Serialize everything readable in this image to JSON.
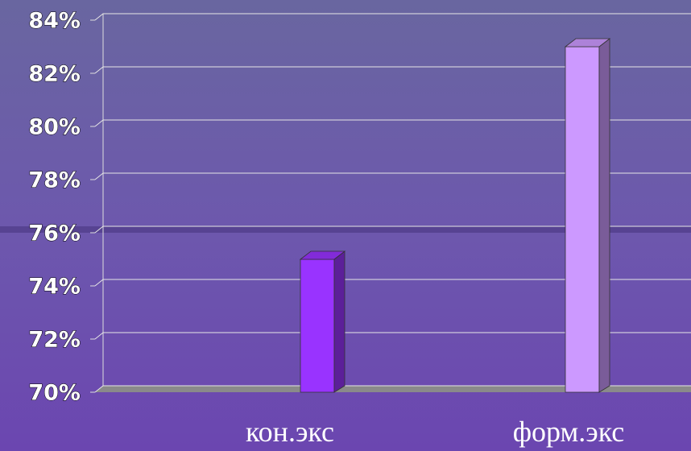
{
  "chart_data": {
    "type": "bar3d",
    "categories": [
      "кон.экс",
      "форм.экс"
    ],
    "values": [
      75,
      83
    ],
    "colors": [
      "#9933ff",
      "#cc99ff"
    ],
    "ylim": [
      70,
      84
    ],
    "yticks": [
      {
        "value": 70,
        "label": "70%"
      },
      {
        "value": 72,
        "label": "72%"
      },
      {
        "value": 74,
        "label": "74%"
      },
      {
        "value": 76,
        "label": "76%"
      },
      {
        "value": 78,
        "label": "78%"
      },
      {
        "value": 80,
        "label": "80%"
      },
      {
        "value": 82,
        "label": "82%"
      },
      {
        "value": 84,
        "label": "84%"
      }
    ],
    "grid": true
  }
}
